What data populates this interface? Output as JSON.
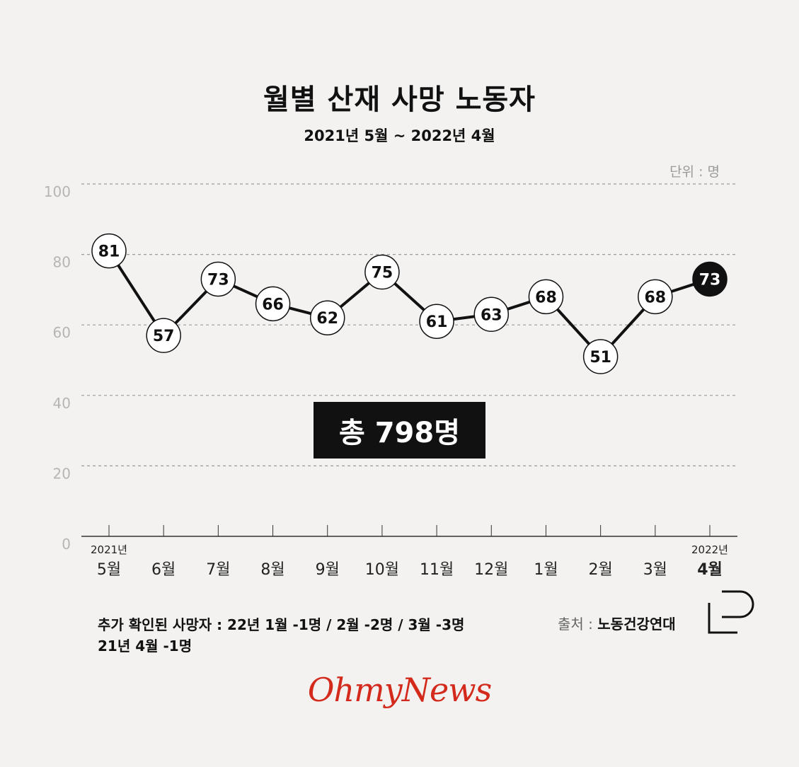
{
  "title": "월별 산재 사망 노동자",
  "subtitle": "2021년 5월 ~ 2022년 4월",
  "unit": "단위 : 명",
  "total": "총 798명",
  "note_lines": [
    "추가 확인된 사망자 : 22년 1월 -1명 / 2월 -2명 / 3월 -3명",
    "21년 4월 -1명"
  ],
  "source": {
    "label": "출처 : ",
    "name": "노동건강연대"
  },
  "brand": "OhmyNews",
  "colors": {
    "background": "#f3f2f0",
    "line": "#111111",
    "highlight": "#111111",
    "brand": "#d32a1c"
  },
  "chart_data": {
    "type": "line",
    "title": "월별 산재 사망 노동자",
    "subtitle": "2021년 5월 ~ 2022년 4월",
    "xlabel": "",
    "ylabel": "",
    "ylim": [
      0,
      100
    ],
    "yticks": [
      0,
      20,
      40,
      60,
      80,
      100
    ],
    "grid": true,
    "categories": [
      "5월",
      "6월",
      "7월",
      "8월",
      "9월",
      "10월",
      "11월",
      "12월",
      "1월",
      "2월",
      "3월",
      "4월"
    ],
    "year_labels": [
      "2021년",
      "",
      "",
      "",
      "",
      "",
      "",
      "",
      "",
      "",
      "",
      "2022년"
    ],
    "values": [
      81,
      57,
      73,
      66,
      62,
      75,
      61,
      63,
      68,
      51,
      68,
      73
    ],
    "highlight_index": 11
  }
}
